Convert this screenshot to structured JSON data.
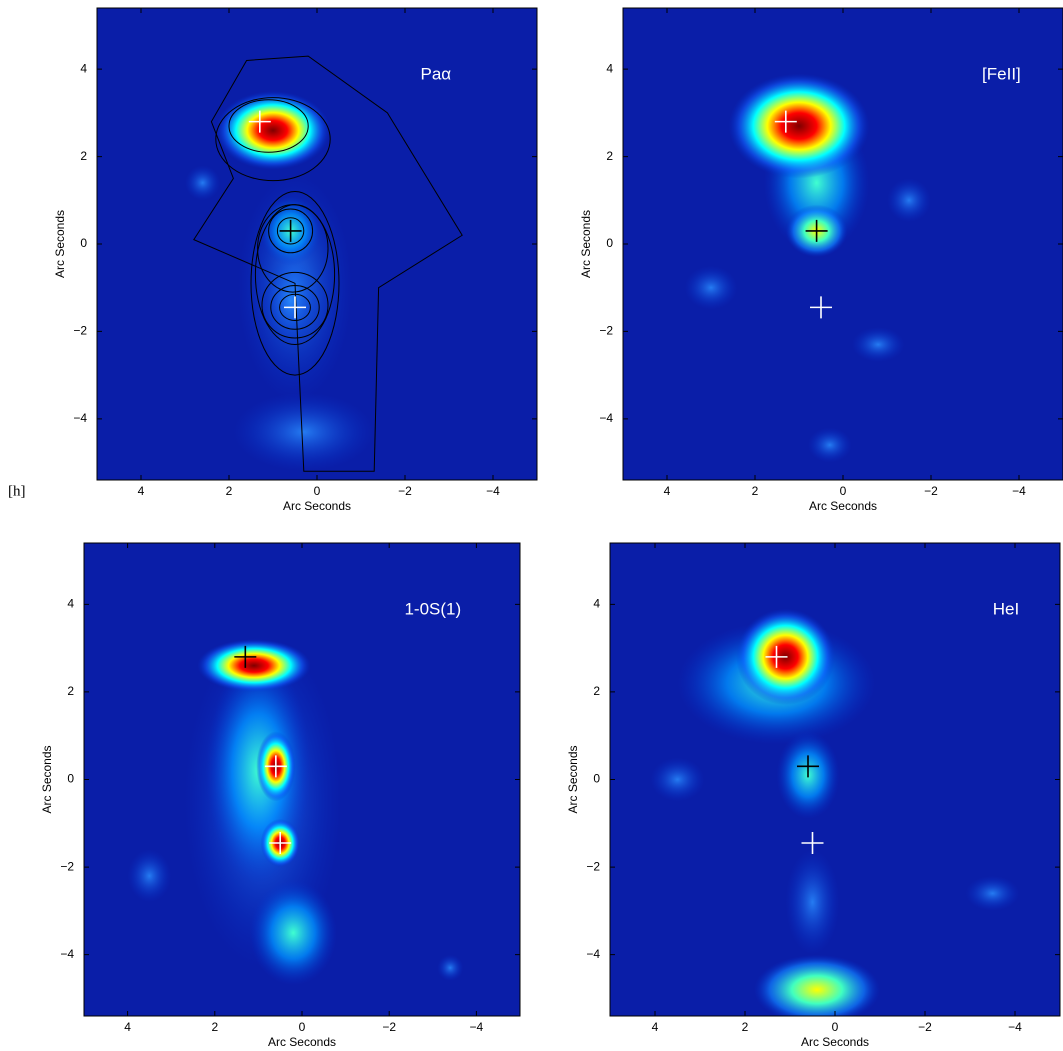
{
  "label": "[h]",
  "chart_data": [
    {
      "type": "scatter",
      "title": "Paα",
      "x_label": "Arc Seconds",
      "y_label": "Arc Seconds",
      "xlim": [
        5,
        -5
      ],
      "ylim": [
        -5.4,
        5.4
      ],
      "xticks": [
        4,
        2,
        0,
        {
          "value": -2,
          "label": "−2"
        },
        {
          "value": -4,
          "label": "−4"
        }
      ],
      "yticks": [
        {
          "value": -4,
          "label": "−4"
        },
        {
          "value": -2,
          "label": "−2"
        },
        0,
        2,
        4
      ],
      "points": {
        "x": [
          1.3,
          0.6,
          0.5
        ],
        "y": [
          2.8,
          0.3,
          -1.45
        ],
        "colors": [
          "#ffffff",
          "#000000",
          "#ffffff"
        ]
      }
    },
    {
      "type": "scatter",
      "title": "[FeII]",
      "x_label": "Arc Seconds",
      "y_label": "Arc Seconds",
      "xlim": [
        5,
        -5
      ],
      "ylim": [
        -5.4,
        5.4
      ],
      "xticks": [
        4,
        2,
        0,
        {
          "value": -2,
          "label": "−2"
        },
        {
          "value": -4,
          "label": "−4"
        }
      ],
      "yticks": [
        {
          "value": -4,
          "label": "−4"
        },
        {
          "value": -2,
          "label": "−2"
        },
        0,
        2,
        4
      ],
      "points": {
        "x": [
          1.3,
          0.6,
          0.5
        ],
        "y": [
          2.8,
          0.3,
          -1.45
        ],
        "colors": [
          "#ffffff",
          "#000000",
          "#ffffff"
        ]
      }
    },
    {
      "type": "scatter",
      "title": "1-0S(1)",
      "x_label": "Arc Seconds",
      "y_label": "Arc Seconds",
      "xlim": [
        5,
        -5
      ],
      "ylim": [
        -5.4,
        5.4
      ],
      "xticks": [
        4,
        2,
        0,
        {
          "value": -2,
          "label": "−2"
        },
        {
          "value": -4,
          "label": "−4"
        }
      ],
      "yticks": [
        {
          "value": -4,
          "label": "−4"
        },
        {
          "value": -2,
          "label": "−2"
        },
        0,
        2,
        4
      ],
      "points": {
        "x": [
          1.3,
          0.6,
          0.5
        ],
        "y": [
          2.8,
          0.3,
          -1.45
        ],
        "colors": [
          "#000000",
          "#ffffff",
          "#ffffff"
        ]
      }
    },
    {
      "type": "scatter",
      "title": "HeI",
      "x_label": "Arc Seconds",
      "y_label": "Arc Seconds",
      "xlim": [
        5,
        -5
      ],
      "ylim": [
        -5.4,
        5.4
      ],
      "xticks": [
        4,
        2,
        0,
        {
          "value": -2,
          "label": "−2"
        },
        {
          "value": -4,
          "label": "−4"
        }
      ],
      "yticks": [
        {
          "value": -4,
          "label": "−4"
        },
        {
          "value": -2,
          "label": "−2"
        },
        0,
        2,
        4
      ],
      "points": {
        "x": [
          1.3,
          0.6,
          0.5
        ],
        "y": [
          2.8,
          0.3,
          -1.45
        ],
        "colors": [
          "#ffffff",
          "#000000",
          "#ffffff"
        ]
      }
    }
  ]
}
